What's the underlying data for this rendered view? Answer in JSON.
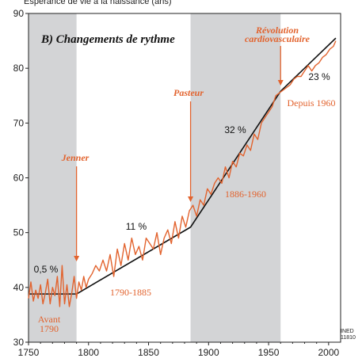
{
  "chart_data": {
    "type": "line",
    "title": "B) Changements de rythme",
    "ylabel": "Espérance de vie à la naissance (ans)",
    "xlabel": "",
    "xlim": [
      1750,
      2010
    ],
    "ylim": [
      30,
      90
    ],
    "x_ticks": [
      "1750",
      "1800",
      "1850",
      "1900",
      "1950",
      "2000"
    ],
    "y_ticks": [
      "30",
      "40",
      "50",
      "60",
      "70",
      "80",
      "90"
    ],
    "shaded_periods": [
      [
        1750,
        1790
      ],
      [
        1885,
        1960
      ]
    ],
    "series": [
      {
        "name": "",
        "color": "#e2632e",
        "x": [
          1750,
          1752,
          1754,
          1756,
          1758,
          1760,
          1762,
          1764,
          1766,
          1768,
          1770,
          1772,
          1774,
          1776,
          1778,
          1780,
          1782,
          1784,
          1786,
          1788,
          1790,
          1792,
          1794,
          1796,
          1798,
          1800,
          1803,
          1806,
          1809,
          1812,
          1815,
          1818,
          1821,
          1824,
          1827,
          1830,
          1833,
          1836,
          1839,
          1842,
          1845,
          1848,
          1851,
          1854,
          1857,
          1860,
          1863,
          1866,
          1869,
          1872,
          1875,
          1878,
          1881,
          1884,
          1887,
          1890,
          1893,
          1896,
          1899,
          1902,
          1905,
          1908,
          1911,
          1914,
          1917,
          1920,
          1923,
          1926,
          1929,
          1932,
          1935,
          1938,
          1941,
          1944,
          1947,
          1950,
          1953,
          1956,
          1959,
          1962,
          1965,
          1968,
          1971,
          1974,
          1977,
          1980,
          1983,
          1986,
          1989,
          1992,
          1995,
          1998,
          2001,
          2004,
          2006
        ],
        "y": [
          38,
          41,
          37.5,
          39.5,
          38,
          40.5,
          37,
          39,
          41.5,
          37,
          40,
          38.5,
          42,
          36.5,
          44,
          37,
          40.5,
          36.5,
          39,
          42,
          38,
          41,
          39.5,
          42,
          40,
          41.5,
          42.5,
          44,
          43,
          45,
          43,
          46,
          42,
          47,
          44,
          48,
          45,
          49,
          46,
          47.5,
          45,
          49,
          48,
          47,
          50,
          46,
          49,
          50.5,
          48,
          52,
          49,
          53,
          51,
          54,
          55,
          53,
          56,
          55,
          58,
          57,
          59,
          60,
          59,
          62,
          60,
          63,
          62,
          64.5,
          64,
          66,
          65,
          68,
          67,
          70,
          71,
          72,
          73,
          75,
          75.5,
          76,
          76.5,
          77,
          78,
          78.5,
          78.5,
          79.5,
          80.5,
          79.5,
          80.5,
          81,
          82,
          82.5,
          83.5,
          84,
          85
        ]
      }
    ],
    "trend_lines": [
      {
        "name": "Avant 1790",
        "x": [
          1750,
          1790
        ],
        "y": [
          38.8,
          38.8
        ],
        "rate": "0,5 %"
      },
      {
        "name": "1790-1885",
        "x": [
          1790,
          1885
        ],
        "y": [
          38.8,
          51
        ],
        "rate": "11 %"
      },
      {
        "name": "1886-1960",
        "x": [
          1885,
          1960
        ],
        "y": [
          51,
          75.8
        ],
        "rate": "32 %"
      },
      {
        "name": "Depuis 1960",
        "x": [
          1960,
          2006
        ],
        "y": [
          75.8,
          85.5
        ],
        "rate": "23 %"
      }
    ],
    "annotations": [
      {
        "label": "Jenner",
        "year": 1790
      },
      {
        "label": "Pasteur",
        "year": 1885
      },
      {
        "label": "Révolution cardiovasculaire",
        "year": 1960
      }
    ]
  },
  "labels": {
    "ylabel": "Espérance de vie à la naissance (ans)",
    "title": "B) Changements de rythme",
    "jenner": "Jenner",
    "pasteur": "Pasteur",
    "revolution_line1": "Révolution",
    "revolution_line2": "cardiovasculaire",
    "rate_before": "0,5 %",
    "rate_1790": "11 %",
    "rate_1886": "32 %",
    "rate_1960": "23 %",
    "period_before_1": "Avant",
    "period_before_2": "1790",
    "period_1790": "1790-1885",
    "period_1886": "1886-1960",
    "period_1960": "Depuis 1960",
    "source_1": "INED",
    "source_2": "11810"
  },
  "colors": {
    "series": "#e2632e",
    "trend": "#111111",
    "shade": "#d3d4d6",
    "annotation": "#e2632e"
  }
}
